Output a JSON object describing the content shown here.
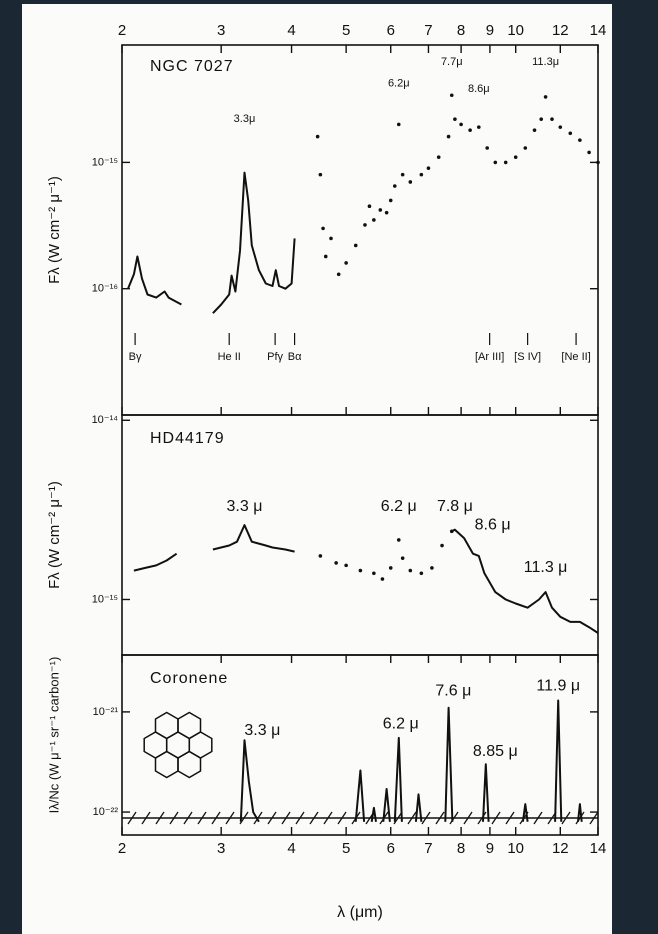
{
  "chart_data": [
    {
      "type": "line",
      "title": "NGC 7027",
      "ylabel": "Fλ (W cm⁻² μ⁻¹)",
      "xscale": "log",
      "yscale": "log",
      "xlim": [
        2,
        14
      ],
      "ylim": [
        1e-17,
        8.5e-15
      ],
      "xticks": [
        2,
        3,
        4,
        5,
        6,
        7,
        8,
        9,
        10,
        12,
        14
      ],
      "yticks": [
        {
          "value": 1e-15,
          "label": "10⁻¹⁵"
        },
        {
          "value": 1e-16,
          "label": "10⁻¹⁶"
        }
      ],
      "color": "#111111",
      "series": [
        {
          "style": "solid",
          "x": [
            2.05,
            2.1,
            2.13,
            2.17,
            2.22,
            2.3,
            2.38,
            2.42,
            2.48,
            2.55
          ],
          "values": [
            1e-16,
            1.3e-16,
            1.8e-16,
            1.2e-16,
            9e-17,
            8.5e-17,
            9.5e-17,
            8.5e-17,
            8e-17,
            7.5e-17
          ]
        },
        {
          "style": "solid",
          "x": [
            2.9,
            3.0,
            3.1,
            3.13,
            3.18,
            3.24,
            3.3,
            3.35,
            3.4,
            3.5,
            3.6,
            3.7,
            3.75,
            3.8,
            3.9,
            4.0,
            4.05
          ],
          "values": [
            6.4e-17,
            7.5e-17,
            9e-17,
            1.27e-16,
            9.5e-17,
            2e-16,
            8.3e-16,
            5e-16,
            2.2e-16,
            1.4e-16,
            1.1e-16,
            1.05e-16,
            1.4e-16,
            1.05e-16,
            1e-16,
            1.1e-16,
            2.5e-16
          ]
        },
        {
          "style": "dots",
          "x": [
            4.45,
            4.5,
            4.55,
            4.6,
            4.7,
            4.85,
            5.0,
            5.2,
            5.4,
            5.5,
            5.6,
            5.75,
            5.9,
            6.0,
            6.1,
            6.2,
            6.3,
            6.5,
            6.8,
            7.0,
            7.3,
            7.6,
            7.7,
            7.8,
            8.0,
            8.3,
            8.6,
            8.9,
            9.2,
            9.6,
            10.0,
            10.4,
            10.8,
            11.1,
            11.3,
            11.6,
            12.0,
            12.5,
            13.0,
            13.5,
            14.0
          ],
          "values": [
            1.6e-15,
            8e-16,
            3e-16,
            1.8e-16,
            2.5e-16,
            1.3e-16,
            1.6e-16,
            2.2e-16,
            3.2e-16,
            4.5e-16,
            3.5e-16,
            4.2e-16,
            4e-16,
            5e-16,
            6.5e-16,
            2e-15,
            8e-16,
            7e-16,
            8e-16,
            9e-16,
            1.1e-15,
            1.6e-15,
            3.4e-15,
            2.2e-15,
            2e-15,
            1.8e-15,
            1.9e-15,
            1.3e-15,
            1e-15,
            1e-15,
            1.1e-15,
            1.3e-15,
            1.8e-15,
            2.2e-15,
            3.3e-15,
            2.2e-15,
            1.9e-15,
            1.7e-15,
            1.5e-15,
            1.2e-15,
            1e-15
          ]
        }
      ],
      "annotations": [
        {
          "text": "3.3μ",
          "x": 3.3,
          "y": 2.2e-15
        },
        {
          "text": "6.2μ",
          "x": 6.2,
          "y": 4.2e-15
        },
        {
          "text": "7.7μ",
          "x": 7.7,
          "y": 6.2e-15
        },
        {
          "text": "8.6μ",
          "x": 8.6,
          "y": 3.8e-15
        },
        {
          "text": "11.3μ",
          "x": 11.3,
          "y": 6.2e-15
        }
      ],
      "line_ids": [
        {
          "text": "Bγ",
          "x": 2.11
        },
        {
          "text": "He II",
          "x": 3.1
        },
        {
          "text": "Pfγ",
          "x": 3.74
        },
        {
          "text": "Bα",
          "x": 4.05
        },
        {
          "text": "[Ar III]",
          "x": 8.99
        },
        {
          "text": "[S IV]",
          "x": 10.5
        },
        {
          "text": "[Ne II]",
          "x": 12.8
        }
      ]
    },
    {
      "type": "line",
      "title": "HD44179",
      "ylabel": "Fλ (W cm⁻² μ⁻¹)",
      "xscale": "log",
      "yscale": "log",
      "xlim": [
        2,
        14
      ],
      "ylim": [
        4.9e-16,
        1.07e-14
      ],
      "yticks": [
        {
          "value": 1e-14,
          "label": "10⁻¹⁴"
        },
        {
          "value": 1e-15,
          "label": "10⁻¹⁵"
        }
      ],
      "color": "#111111",
      "series": [
        {
          "style": "solid",
          "x": [
            2.1,
            2.2,
            2.3,
            2.4,
            2.5
          ],
          "values": [
            1.45e-15,
            1.5e-15,
            1.55e-15,
            1.65e-15,
            1.8e-15
          ]
        },
        {
          "style": "solid",
          "x": [
            2.9,
            3.1,
            3.2,
            3.3,
            3.4,
            3.5,
            3.6,
            3.7,
            3.9,
            4.05
          ],
          "values": [
            1.9e-15,
            2e-15,
            2.1e-15,
            2.6e-15,
            2.1e-15,
            2.05e-15,
            2e-15,
            1.95e-15,
            1.9e-15,
            1.85e-15
          ]
        },
        {
          "style": "dots",
          "x": [
            4.5,
            4.8,
            5.0,
            5.3,
            5.6,
            5.8,
            6.0,
            6.2,
            6.3,
            6.5,
            6.8,
            7.1,
            7.4,
            7.7
          ],
          "values": [
            1.75e-15,
            1.6e-15,
            1.55e-15,
            1.45e-15,
            1.4e-15,
            1.3e-15,
            1.5e-15,
            2.15e-15,
            1.7e-15,
            1.45e-15,
            1.4e-15,
            1.5e-15,
            2e-15,
            2.4e-15
          ]
        },
        {
          "style": "solid",
          "x": [
            7.7,
            7.8,
            8.1,
            8.4,
            8.6,
            8.8,
            9.2,
            9.6,
            10.0,
            10.5,
            11.0,
            11.3,
            11.6,
            12.0,
            12.5,
            13.0,
            13.5,
            14.0
          ],
          "values": [
            2.4e-15,
            2.45e-15,
            2.2e-15,
            1.8e-15,
            1.75e-15,
            1.4e-15,
            1.1e-15,
            1e-15,
            9.5e-16,
            9e-16,
            1e-15,
            1.1e-15,
            9e-16,
            8e-16,
            7.5e-16,
            7.5e-16,
            7e-16,
            6.5e-16
          ]
        }
      ],
      "annotations": [
        {
          "text": "3.3 μ",
          "x": 3.3,
          "y": 3.3e-15
        },
        {
          "text": "6.2 μ",
          "x": 6.2,
          "y": 3.3e-15
        },
        {
          "text": "7.8 μ",
          "x": 7.8,
          "y": 3.3e-15
        },
        {
          "text": "8.6 μ",
          "x": 9.1,
          "y": 2.6e-15
        },
        {
          "text": "11.3 μ",
          "x": 11.3,
          "y": 1.5e-15
        }
      ]
    },
    {
      "type": "line",
      "title": "Coronene",
      "ylabel": "Iλ/Nc (W μ⁻¹ sr⁻¹ carbon⁻¹)",
      "xscale": "log",
      "yscale": "log",
      "xlim": [
        2,
        14
      ],
      "ylim": [
        5.9e-23,
        3.7e-21
      ],
      "xticks": [
        2,
        3,
        4,
        5,
        6,
        7,
        8,
        9,
        10,
        12,
        14
      ],
      "yticks": [
        {
          "value": 1e-21,
          "label": "10⁻²¹"
        },
        {
          "value": 1e-22,
          "label": "10⁻²²"
        }
      ],
      "xlabel": "λ (μm)",
      "color": "#111111",
      "series": [
        {
          "style": "solid",
          "x": [
            3.25,
            3.3,
            3.36,
            3.42,
            3.5,
            null,
            5.2,
            5.3,
            5.38,
            null,
            5.55,
            5.6,
            5.65,
            null,
            5.82,
            5.9,
            5.98,
            null,
            6.1,
            6.2,
            6.28,
            null,
            6.65,
            6.72,
            6.8,
            null,
            7.5,
            7.6,
            7.72,
            null,
            8.75,
            8.85,
            8.95,
            null,
            10.3,
            10.4,
            10.5,
            null,
            11.75,
            11.9,
            12.05,
            null,
            12.9,
            13.0,
            13.1
          ],
          "values": [
            8e-23,
            5.2e-22,
            2e-22,
            1e-22,
            8e-23,
            null,
            8e-23,
            2.6e-22,
            8e-23,
            null,
            8e-23,
            1.1e-22,
            8e-23,
            null,
            8e-23,
            1.7e-22,
            8e-23,
            null,
            8e-23,
            5.5e-22,
            8e-23,
            null,
            8e-23,
            1.5e-22,
            8e-23,
            null,
            8e-23,
            1.1e-21,
            8e-23,
            null,
            8e-23,
            3e-22,
            8e-23,
            null,
            8e-23,
            1.2e-22,
            8e-23,
            null,
            8e-23,
            1.3e-21,
            8e-23,
            null,
            8e-23,
            1.2e-22,
            8e-23
          ]
        }
      ],
      "annotations": [
        {
          "text": "3.3 μ",
          "x": 3.55,
          "y": 6.5e-22
        },
        {
          "text": "6.2 μ",
          "x": 6.25,
          "y": 7.5e-22
        },
        {
          "text": "7.6 μ",
          "x": 7.75,
          "y": 1.6e-21
        },
        {
          "text": "8.85 μ",
          "x": 9.2,
          "y": 4e-22
        },
        {
          "text": "11.9 μ",
          "x": 11.9,
          "y": 1.8e-21
        }
      ]
    }
  ]
}
